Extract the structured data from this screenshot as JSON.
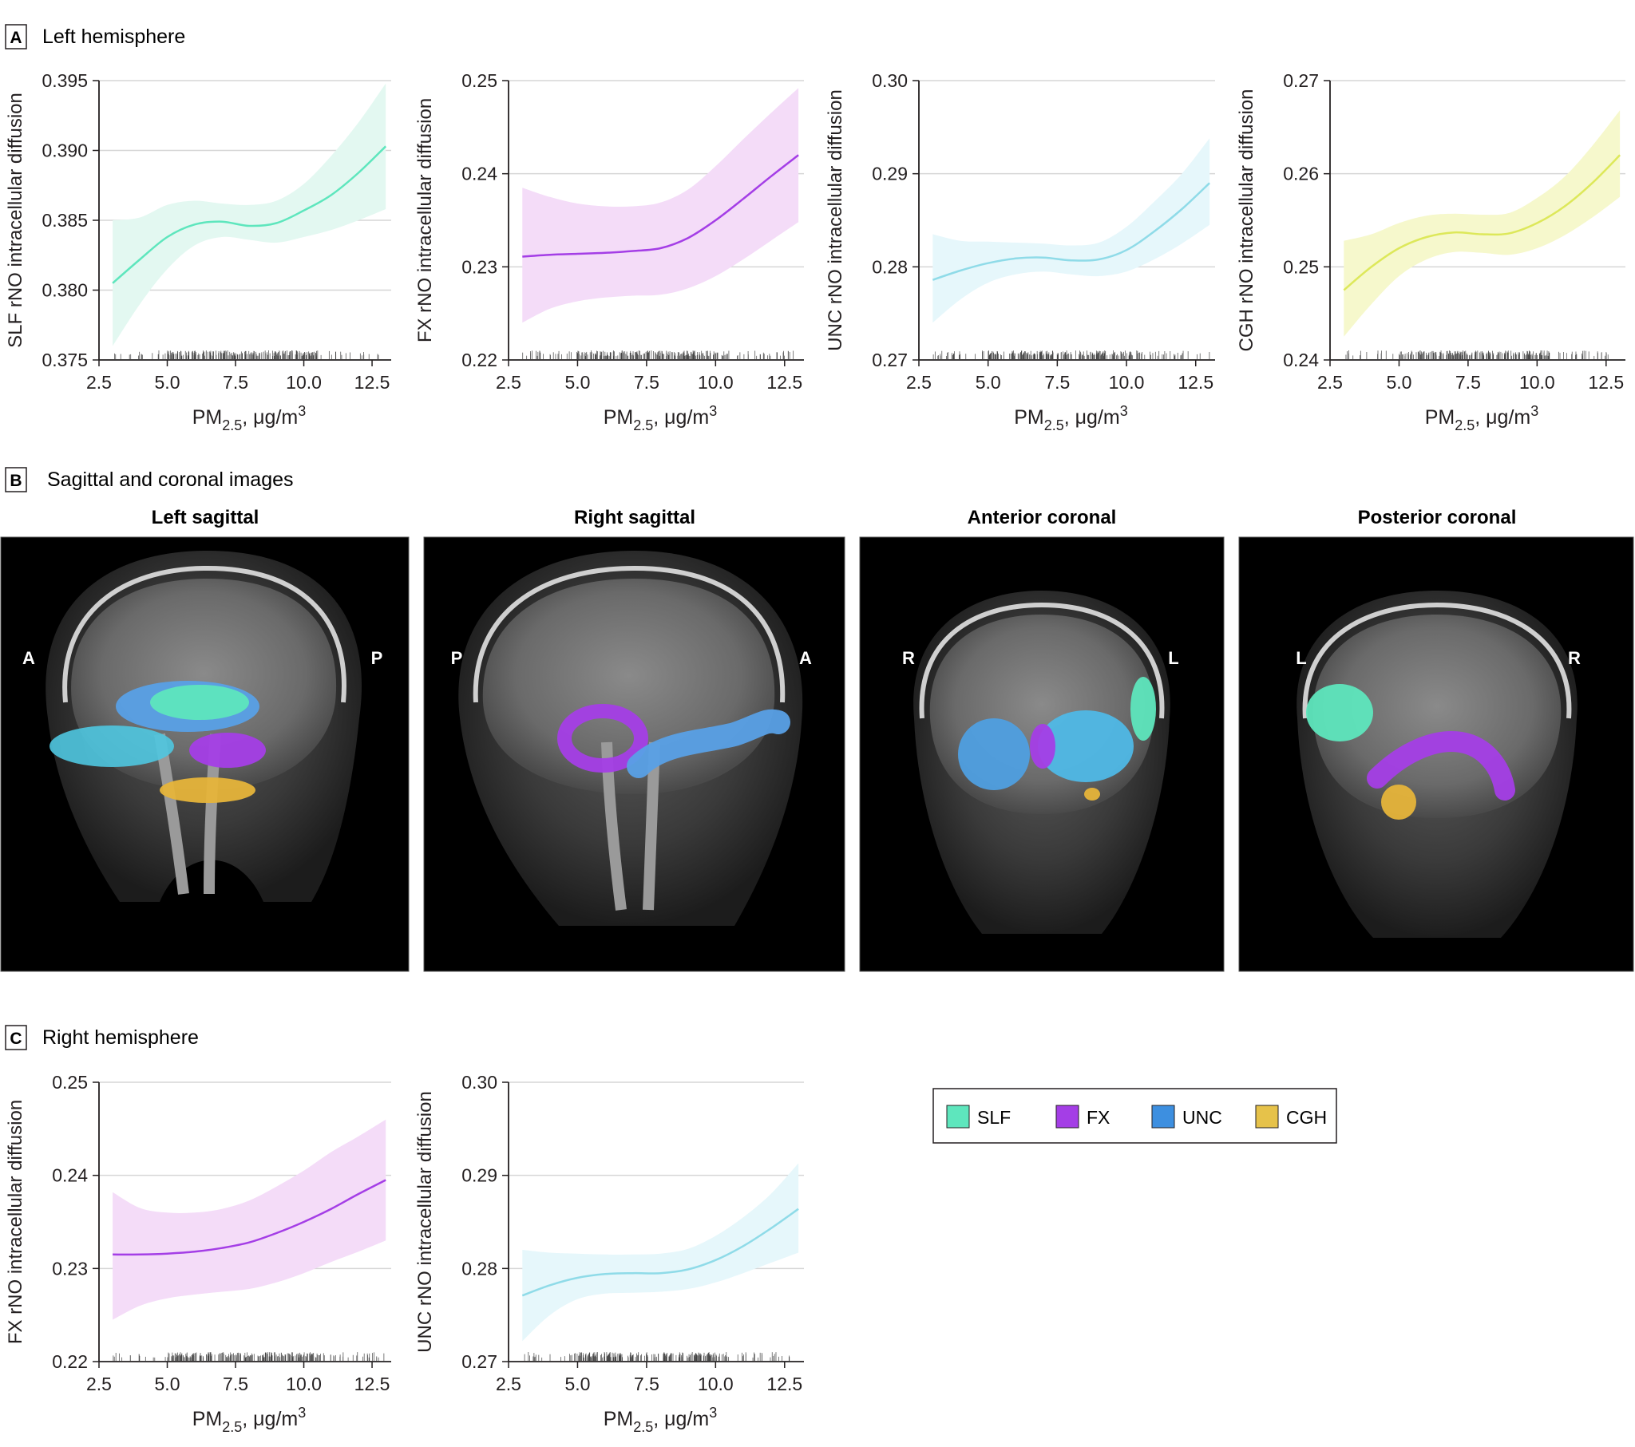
{
  "panels": {
    "A": {
      "letter": "A",
      "title": "Left hemisphere"
    },
    "B": {
      "letter": "B",
      "title": "Sagittal and coronal images"
    },
    "C": {
      "letter": "C",
      "title": "Right hemisphere"
    }
  },
  "xaxis": {
    "label_main": "PM",
    "label_sub": "2.5",
    "label_unit": ", μg/m",
    "label_sup": "3"
  },
  "brain_images": [
    {
      "title": "Left sagittal",
      "left_label": "A",
      "right_label": "P",
      "view": "sagittal-left"
    },
    {
      "title": "Right sagittal",
      "left_label": "P",
      "right_label": "A",
      "view": "sagittal-right"
    },
    {
      "title": "Anterior coronal",
      "left_label": "R",
      "right_label": "L",
      "view": "coronal-anterior"
    },
    {
      "title": "Posterior coronal",
      "left_label": "L",
      "right_label": "R",
      "view": "coronal-posterior"
    }
  ],
  "legend": [
    {
      "label": "SLF",
      "color": "#5ee6bd"
    },
    {
      "label": "FX",
      "color": "#a43ee6"
    },
    {
      "label": "UNC",
      "color": "#3d8fe0"
    },
    {
      "label": "CGH",
      "color": "#e6c24a"
    }
  ],
  "chart_data": [
    {
      "id": "A1",
      "type": "line",
      "panel": "A",
      "series_name": "SLF",
      "ylabel": "SLF rNO intracellular diffusion",
      "xlim": [
        2.5,
        13.2
      ],
      "xticks": [
        2.5,
        5.0,
        7.5,
        10.0,
        12.5
      ],
      "xtick_labels": [
        "2.5",
        "5.0",
        "7.5",
        "10.0",
        "12.5"
      ],
      "ylim": [
        0.375,
        0.395
      ],
      "yticks": [
        0.375,
        0.38,
        0.385,
        0.39,
        0.395
      ],
      "ytick_labels": [
        "0.375",
        "0.380",
        "0.385",
        "0.390",
        "0.395"
      ],
      "color": "#5ee6bd",
      "fill": "#e3f8f1",
      "x": [
        3.0,
        4.0,
        5.0,
        6.0,
        7.0,
        8.0,
        9.0,
        10.0,
        11.0,
        12.0,
        13.0
      ],
      "y": [
        0.3805,
        0.3822,
        0.3838,
        0.3847,
        0.3849,
        0.3846,
        0.3848,
        0.3857,
        0.3868,
        0.3884,
        0.3903
      ],
      "lower": [
        0.376,
        0.379,
        0.3815,
        0.3832,
        0.3838,
        0.3836,
        0.3834,
        0.3838,
        0.3843,
        0.385,
        0.3858
      ],
      "upper": [
        0.385,
        0.3852,
        0.3861,
        0.3864,
        0.3862,
        0.3861,
        0.3864,
        0.3876,
        0.3896,
        0.392,
        0.3948
      ]
    },
    {
      "id": "A2",
      "type": "line",
      "panel": "A",
      "series_name": "FX",
      "ylabel": "FX rNO intracellular diffusion",
      "xlim": [
        2.5,
        13.2
      ],
      "xticks": [
        2.5,
        5.0,
        7.5,
        10.0,
        12.5
      ],
      "xtick_labels": [
        "2.5",
        "5.0",
        "7.5",
        "10.0",
        "12.5"
      ],
      "ylim": [
        0.22,
        0.25
      ],
      "yticks": [
        0.22,
        0.23,
        0.24,
        0.25
      ],
      "ytick_labels": [
        "0.22",
        "0.23",
        "0.24",
        "0.25"
      ],
      "color": "#a43ee6",
      "fill": "#f4dcf8",
      "x": [
        3.0,
        4.0,
        5.0,
        6.0,
        7.0,
        8.0,
        9.0,
        10.0,
        11.0,
        12.0,
        13.0
      ],
      "y": [
        0.2311,
        0.2313,
        0.2314,
        0.2315,
        0.2317,
        0.232,
        0.2331,
        0.235,
        0.2373,
        0.2397,
        0.242
      ],
      "lower": [
        0.224,
        0.2255,
        0.2263,
        0.2267,
        0.2269,
        0.227,
        0.2277,
        0.229,
        0.2308,
        0.2328,
        0.2348
      ],
      "upper": [
        0.2385,
        0.2375,
        0.2368,
        0.2365,
        0.2365,
        0.2369,
        0.2383,
        0.2408,
        0.2437,
        0.2465,
        0.2492
      ]
    },
    {
      "id": "A3",
      "type": "line",
      "panel": "A",
      "series_name": "UNC",
      "ylabel": "UNC rNO intracellular diffusion",
      "xlim": [
        2.5,
        13.2
      ],
      "xticks": [
        2.5,
        5.0,
        7.5,
        10.0,
        12.5
      ],
      "xtick_labels": [
        "2.5",
        "5.0",
        "7.5",
        "10.0",
        "12.5"
      ],
      "ylim": [
        0.27,
        0.3
      ],
      "yticks": [
        0.27,
        0.28,
        0.29,
        0.3
      ],
      "ytick_labels": [
        "0.27",
        "0.28",
        "0.29",
        "0.30"
      ],
      "color": "#8fdbe8",
      "fill": "#e6f7fb",
      "x": [
        3.0,
        4.0,
        5.0,
        6.0,
        7.0,
        8.0,
        9.0,
        10.0,
        11.0,
        12.0,
        13.0
      ],
      "y": [
        0.2786,
        0.2796,
        0.2804,
        0.2809,
        0.281,
        0.2807,
        0.2808,
        0.2818,
        0.2838,
        0.2862,
        0.289
      ],
      "lower": [
        0.274,
        0.2765,
        0.2783,
        0.2792,
        0.2795,
        0.2792,
        0.279,
        0.2795,
        0.2808,
        0.2825,
        0.2845
      ],
      "upper": [
        0.2835,
        0.2828,
        0.2827,
        0.2826,
        0.2825,
        0.2823,
        0.2826,
        0.2843,
        0.287,
        0.29,
        0.2938
      ]
    },
    {
      "id": "A4",
      "type": "line",
      "panel": "A",
      "series_name": "CGH",
      "ylabel": "CGH rNO intracellular diffusion",
      "xlim": [
        2.5,
        13.2
      ],
      "xticks": [
        2.5,
        5.0,
        7.5,
        10.0,
        12.5
      ],
      "xtick_labels": [
        "2.5",
        "5.0",
        "7.5",
        "10.0",
        "12.5"
      ],
      "ylim": [
        0.24,
        0.27
      ],
      "yticks": [
        0.24,
        0.25,
        0.26,
        0.27
      ],
      "ytick_labels": [
        "0.24",
        "0.25",
        "0.26",
        "0.27"
      ],
      "color": "#dde85a",
      "fill": "#f6f8cc",
      "x": [
        3.0,
        4.0,
        5.0,
        6.0,
        7.0,
        8.0,
        9.0,
        10.0,
        11.0,
        12.0,
        13.0
      ],
      "y": [
        0.2475,
        0.25,
        0.252,
        0.2532,
        0.2537,
        0.2535,
        0.2536,
        0.2547,
        0.2565,
        0.259,
        0.262
      ],
      "lower": [
        0.2425,
        0.246,
        0.249,
        0.2508,
        0.2516,
        0.2515,
        0.2513,
        0.252,
        0.2534,
        0.2553,
        0.2575
      ],
      "upper": [
        0.2528,
        0.2535,
        0.2547,
        0.2555,
        0.2557,
        0.2556,
        0.2558,
        0.2574,
        0.2597,
        0.263,
        0.2668
      ]
    },
    {
      "id": "C1",
      "type": "line",
      "panel": "C",
      "series_name": "FX",
      "ylabel": "FX rNO intracellular diffusion",
      "xlim": [
        2.5,
        13.2
      ],
      "xticks": [
        2.5,
        5.0,
        7.5,
        10.0,
        12.5
      ],
      "xtick_labels": [
        "2.5",
        "5.0",
        "7.5",
        "10.0",
        "12.5"
      ],
      "ylim": [
        0.22,
        0.25
      ],
      "yticks": [
        0.22,
        0.23,
        0.24,
        0.25
      ],
      "ytick_labels": [
        "0.22",
        "0.23",
        "0.24",
        "0.25"
      ],
      "color": "#a43ee6",
      "fill": "#f4dcf8",
      "x": [
        3.0,
        4.0,
        5.0,
        6.0,
        7.0,
        8.0,
        9.0,
        10.0,
        11.0,
        12.0,
        13.0
      ],
      "y": [
        0.2315,
        0.2315,
        0.2316,
        0.2318,
        0.2322,
        0.2328,
        0.2338,
        0.235,
        0.2364,
        0.238,
        0.2395
      ],
      "lower": [
        0.2245,
        0.226,
        0.2268,
        0.2272,
        0.2275,
        0.2278,
        0.2285,
        0.2295,
        0.2307,
        0.2318,
        0.233
      ],
      "upper": [
        0.2382,
        0.2365,
        0.236,
        0.236,
        0.2364,
        0.2373,
        0.2388,
        0.2405,
        0.2425,
        0.2442,
        0.246
      ]
    },
    {
      "id": "C2",
      "type": "line",
      "panel": "C",
      "series_name": "UNC",
      "ylabel": "UNC rNO intracellular diffusion",
      "xlim": [
        2.5,
        13.2
      ],
      "xticks": [
        2.5,
        5.0,
        7.5,
        10.0,
        12.5
      ],
      "xtick_labels": [
        "2.5",
        "5.0",
        "7.5",
        "10.0",
        "12.5"
      ],
      "ylim": [
        0.27,
        0.3
      ],
      "yticks": [
        0.27,
        0.28,
        0.29,
        0.3
      ],
      "ytick_labels": [
        "0.27",
        "0.28",
        "0.29",
        "0.30"
      ],
      "color": "#8fdbe8",
      "fill": "#e6f7fb",
      "x": [
        3.0,
        4.0,
        5.0,
        6.0,
        7.0,
        8.0,
        9.0,
        10.0,
        11.0,
        12.0,
        13.0
      ],
      "y": [
        0.2771,
        0.2782,
        0.279,
        0.2794,
        0.2795,
        0.2795,
        0.2799,
        0.2809,
        0.2824,
        0.2843,
        0.2864
      ],
      "lower": [
        0.2722,
        0.275,
        0.2767,
        0.2773,
        0.2774,
        0.2775,
        0.2778,
        0.2785,
        0.2795,
        0.2806,
        0.2817
      ],
      "upper": [
        0.282,
        0.2817,
        0.2816,
        0.2815,
        0.2815,
        0.2816,
        0.2821,
        0.2835,
        0.2855,
        0.288,
        0.2913
      ]
    }
  ]
}
